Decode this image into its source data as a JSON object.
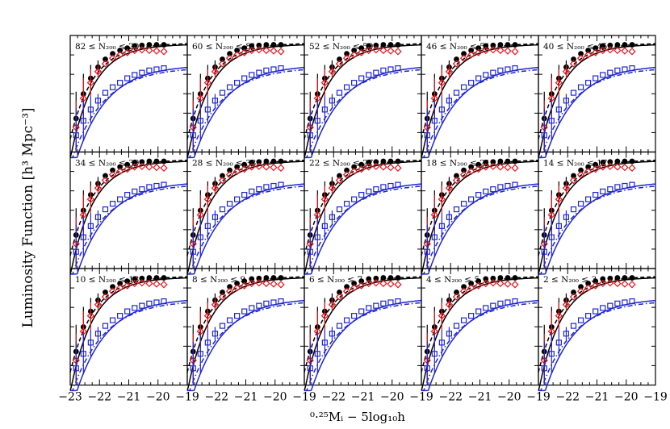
{
  "figure": {
    "ylabel": "Luminosity Function [h³ Mpc⁻³]",
    "xlabel": "⁰·²⁵Mᵢ − 5log₁₀h"
  },
  "colors": {
    "total": "#000000",
    "red": "#e8141c",
    "blue": "#2026d0"
  },
  "chart_data": {
    "type": "scatter",
    "xlim": [
      -23,
      -19
    ],
    "grid": false,
    "x_ticks": [
      "−23",
      "−22",
      "−21",
      "−20",
      "−19"
    ],
    "x_tick_values": [
      -23,
      -22,
      -21,
      -20,
      -19
    ],
    "panels": [
      {
        "label": "82 ≤ N₂₀₀ ≤ 200"
      },
      {
        "label": "60 ≤ N₂₀₀ ≤ 81"
      },
      {
        "label": "52 ≤ N₂₀₀ ≤ 59"
      },
      {
        "label": "46 ≤ N₂₀₀ ≤ 51"
      },
      {
        "label": "40 ≤ N₂₀₀ ≤ 45"
      },
      {
        "label": "34 ≤ N₂₀₀ ≤ 39"
      },
      {
        "label": "28 ≤ N₂₀₀ ≤ 33"
      },
      {
        "label": "22 ≤ N₂₀₀ ≤ 27"
      },
      {
        "label": "18 ≤ N₂₀₀ ≤ 21"
      },
      {
        "label": "14 ≤ N₂₀₀ ≤ 17"
      },
      {
        "label": "10 ≤ N₂₀₀ ≤ 13"
      },
      {
        "label": "8 ≤ N₂₀₀ ≤ 9"
      },
      {
        "label": "6 ≤ N₂₀₀ ≤ 7"
      },
      {
        "label": "4 ≤ N₂₀₀ ≤ 5"
      },
      {
        "label": "2 ≤ N₂₀₀ ≤ 3"
      }
    ],
    "series": [
      {
        "marker": "filled-circle",
        "color": "#000000",
        "x": [
          -22.8,
          -22.55,
          -22.3,
          -22.05,
          -21.8,
          -21.55,
          -21.3,
          -21.05,
          -20.8,
          -20.55,
          -20.3,
          -20.05,
          -19.8
        ],
        "y": [
          0.3,
          0.52,
          0.66,
          0.76,
          0.83,
          0.88,
          0.91,
          0.93,
          0.95,
          0.955,
          0.96,
          0.96,
          0.96
        ]
      },
      {
        "marker": "open-diamond",
        "color": "#e8141c",
        "x": [
          -22.8,
          -22.55,
          -22.3,
          -22.05,
          -21.8,
          -21.55,
          -21.3,
          -21.05,
          -20.8,
          -20.55,
          -20.3,
          -20.05,
          -19.8
        ],
        "y": [
          0.22,
          0.48,
          0.62,
          0.72,
          0.79,
          0.84,
          0.87,
          0.89,
          0.91,
          0.915,
          0.91,
          0.905,
          0.9
        ]
      },
      {
        "marker": "open-square",
        "color": "#2026d0",
        "x": [
          -22.8,
          -22.55,
          -22.3,
          -22.05,
          -21.8,
          -21.55,
          -21.3,
          -21.05,
          -20.8,
          -20.55,
          -20.3,
          -20.05,
          -19.8
        ],
        "y": [
          0.15,
          0.28,
          0.38,
          0.46,
          0.53,
          0.58,
          0.62,
          0.66,
          0.69,
          0.71,
          0.73,
          0.74,
          0.75
        ]
      }
    ],
    "curves": [
      {
        "style": "solid",
        "color": "#000000",
        "x0": -22.95,
        "amp": 0.965,
        "scale": 0.78
      },
      {
        "style": "dashed",
        "color": "#000000",
        "x0": -23.1,
        "amp": 0.975,
        "scale": 0.8
      },
      {
        "style": "solid",
        "color": "#2026d0",
        "x0": -22.7,
        "amp": 0.78,
        "scale": 1.05
      },
      {
        "style": "dashdot",
        "color": "#2026d0",
        "x0": -22.85,
        "amp": 0.76,
        "scale": 1.1
      }
    ]
  }
}
